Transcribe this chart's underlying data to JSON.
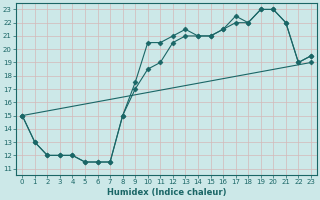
{
  "title": "",
  "xlabel": "Humidex (Indice chaleur)",
  "ylabel": "",
  "bg_color": "#cce8e8",
  "line_color": "#1a6666",
  "xlim": [
    -0.5,
    23.5
  ],
  "ylim": [
    10.5,
    23.5
  ],
  "xticks": [
    0,
    1,
    2,
    3,
    4,
    5,
    6,
    7,
    8,
    9,
    10,
    11,
    12,
    13,
    14,
    15,
    16,
    17,
    18,
    19,
    20,
    21,
    22,
    23
  ],
  "yticks": [
    11,
    12,
    13,
    14,
    15,
    16,
    17,
    18,
    19,
    20,
    21,
    22,
    23
  ],
  "line1_x": [
    0,
    1,
    2,
    3,
    4,
    5,
    6,
    7,
    8,
    9,
    10,
    11,
    12,
    13,
    14,
    15,
    16,
    17,
    18,
    19,
    20,
    21,
    22,
    23
  ],
  "line1_y": [
    15,
    13,
    12,
    12,
    12,
    11.5,
    11.5,
    11.5,
    15,
    17,
    18.5,
    19,
    20.5,
    21,
    21,
    21,
    21.5,
    22,
    22,
    23,
    23,
    22,
    19,
    19.5
  ],
  "line2_x": [
    0,
    1,
    2,
    3,
    4,
    5,
    6,
    7,
    8,
    9,
    10,
    11,
    12,
    13,
    14,
    15,
    16,
    17,
    18,
    19,
    20,
    21,
    22,
    23
  ],
  "line2_y": [
    15,
    13,
    12,
    12,
    12,
    11.5,
    11.5,
    11.5,
    15,
    17.5,
    20.5,
    20.5,
    21,
    21.5,
    21,
    21,
    21.5,
    22.5,
    22,
    23,
    23,
    22,
    19,
    19.5
  ],
  "line3_x": [
    0,
    23
  ],
  "line3_y": [
    15,
    19
  ],
  "marker": "D",
  "markersize": 2.5
}
